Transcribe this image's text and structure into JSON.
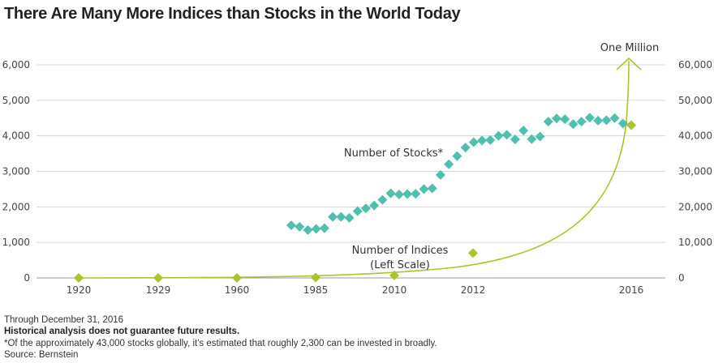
{
  "title": "There Are Many More Indices than Stocks in the World Today",
  "chart_data": {
    "type": "scatter",
    "left_axis": {
      "ylim": [
        0,
        6000
      ],
      "ticks": [
        "0",
        "1,000",
        "2,000",
        "3,000",
        "4,000",
        "5,000",
        "6,000"
      ]
    },
    "right_axis": {
      "ylim": [
        0,
        60000
      ],
      "ticks": [
        "0",
        "10,000",
        "20,000",
        "30,000",
        "40,000",
        "50,000",
        "60,000"
      ]
    },
    "x_tick_labels": [
      "1920",
      "1929",
      "1960",
      "1985",
      "2010",
      "2012",
      "2016"
    ],
    "grid": true,
    "series": [
      {
        "name": "Number of Indices",
        "scale_label": "(Left Scale)",
        "axis": "left",
        "color": "#a8c62c",
        "x": [
          "1920",
          "1929",
          "1960",
          "1985",
          "2010",
          "2012",
          "2016"
        ],
        "values": [
          0,
          0,
          0,
          10,
          70,
          700,
          4300
        ]
      },
      {
        "name": "Number of Stocks*",
        "axis": "right",
        "color": "#4fbfae",
        "values": [
          14800,
          14400,
          13500,
          13800,
          14000,
          17200,
          17200,
          16900,
          18800,
          19600,
          20400,
          22000,
          23800,
          23500,
          23600,
          23700,
          25000,
          25200,
          29000,
          32000,
          34300,
          36700,
          38200,
          38700,
          38800,
          40000,
          40300,
          39000,
          41500,
          39100,
          39800,
          44000,
          44900,
          44700,
          43300,
          44000,
          45100,
          44300,
          44400,
          45000,
          43500,
          43000
        ]
      }
    ],
    "annotations": {
      "arrow_label": "One Million"
    }
  },
  "notes": {
    "through": "Through December 31, 2016",
    "disclaimer": "Historical analysis does not guarantee future results.",
    "footnote": "*Of the approximately 43,000 stocks globally, it's estimated that roughly 2,300 can be invested in broadly.",
    "source": "Source: Bernstein"
  }
}
